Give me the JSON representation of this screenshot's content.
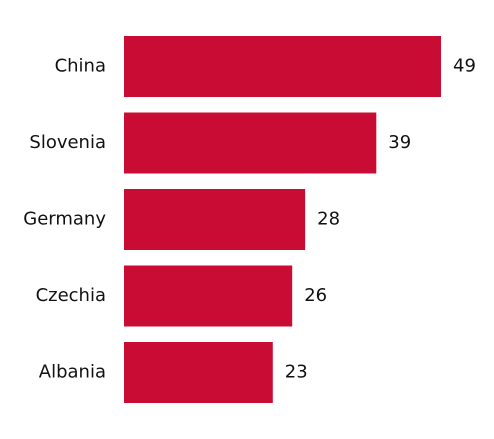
{
  "chart_data": {
    "type": "bar",
    "orientation": "horizontal",
    "categories": [
      "China",
      "Slovenia",
      "Germany",
      "Czechia",
      "Albania"
    ],
    "values": [
      49,
      39,
      28,
      26,
      23
    ],
    "color": "#c90c34"
  }
}
